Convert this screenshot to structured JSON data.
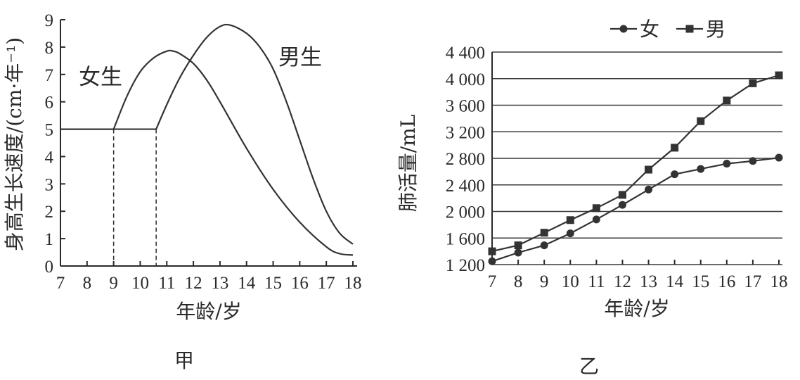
{
  "chart_data": [
    {
      "type": "line",
      "caption": "甲",
      "xlabel": "年龄/岁",
      "ylabel": "身高生长速度/(cm·年⁻¹)",
      "xlim": [
        7,
        18
      ],
      "ylim": [
        0,
        9
      ],
      "x_ticks": [
        "7",
        "8",
        "9",
        "10",
        "11",
        "12",
        "13",
        "14",
        "15",
        "16",
        "17",
        "18"
      ],
      "y_ticks": [
        "0",
        "1",
        "2",
        "3",
        "4",
        "5",
        "6",
        "7",
        "8",
        "9"
      ],
      "series": [
        {
          "name": "女生",
          "x": [
            7,
            9,
            9.5,
            10,
            10.5,
            11,
            11.25,
            11.5,
            12,
            12.5,
            13,
            14,
            15,
            16,
            17,
            17.5,
            18
          ],
          "y": [
            5,
            5,
            6.2,
            7.1,
            7.6,
            7.85,
            7.85,
            7.75,
            7.4,
            6.8,
            6.0,
            4.3,
            2.8,
            1.6,
            0.7,
            0.45,
            0.4
          ]
        },
        {
          "name": "男生",
          "x": [
            7,
            10.6,
            11,
            11.5,
            12,
            12.5,
            13,
            13.4,
            14,
            14.5,
            15,
            15.5,
            16,
            16.5,
            17,
            17.5,
            18
          ],
          "y": [
            5,
            5,
            5.9,
            6.9,
            7.7,
            8.35,
            8.75,
            8.8,
            8.5,
            8.0,
            7.2,
            6.0,
            4.6,
            3.2,
            2.0,
            1.2,
            0.8
          ]
        }
      ],
      "annotations": [
        "女生",
        "男生"
      ]
    },
    {
      "type": "line",
      "caption": "乙",
      "xlabel": "年龄/岁",
      "ylabel": "肺活量/mL",
      "xlim": [
        7,
        18
      ],
      "ylim": [
        1200,
        4400
      ],
      "x_ticks": [
        "7",
        "8",
        "9",
        "10",
        "11",
        "12",
        "13",
        "14",
        "15",
        "16",
        "17",
        "18"
      ],
      "y_ticks": [
        "1 200",
        "1 600",
        "2 000",
        "2 400",
        "2 800",
        "3 200",
        "3 600",
        "4 000",
        "4 400"
      ],
      "grid": true,
      "legend": "top",
      "categories": [
        7,
        8,
        9,
        10,
        11,
        12,
        13,
        14,
        15,
        16,
        17,
        18
      ],
      "series": [
        {
          "name": "女",
          "marker": "circle",
          "values": [
            1250,
            1380,
            1490,
            1670,
            1880,
            2100,
            2330,
            2560,
            2640,
            2720,
            2760,
            2810
          ]
        },
        {
          "name": "男",
          "marker": "square",
          "values": [
            1400,
            1490,
            1680,
            1870,
            2050,
            2250,
            2630,
            2960,
            3360,
            3670,
            3930,
            4050
          ]
        }
      ]
    }
  ]
}
